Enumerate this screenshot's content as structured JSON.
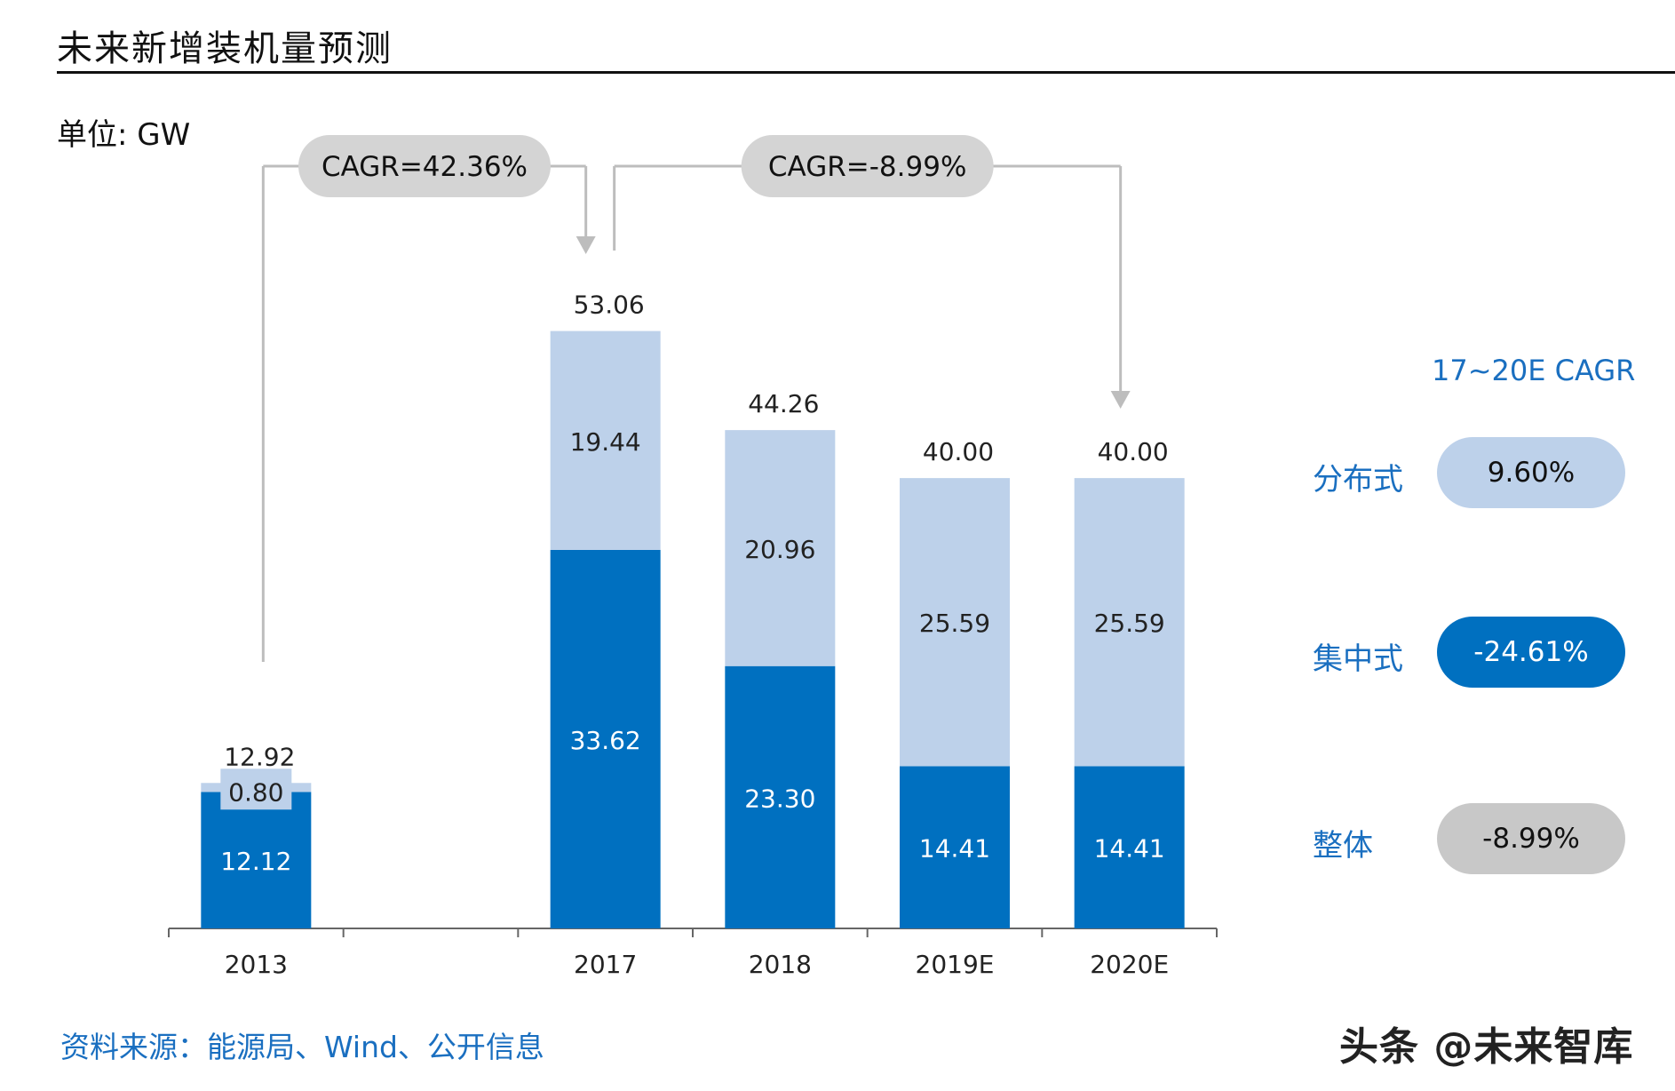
{
  "header": {
    "title": "未来新增装机量预测",
    "unit": "单位: GW"
  },
  "chart_data": {
    "type": "bar",
    "stacked": true,
    "categories": [
      "2013",
      "2017",
      "2018",
      "2019E",
      "2020E"
    ],
    "slots": [
      "2013",
      "",
      "2017",
      "2018",
      "2019E",
      "2020E"
    ],
    "series": [
      {
        "values": [
          12.12,
          33.62,
          23.3,
          14.41,
          14.41
        ],
        "labels": [
          "12.12",
          "33.62",
          "23.30",
          "14.41",
          "14.41"
        ],
        "color": "#0070c0"
      },
      {
        "values": [
          0.8,
          19.44,
          20.96,
          25.59,
          25.59
        ],
        "labels": [
          "0.80",
          "19.44",
          "20.96",
          "25.59",
          "25.59"
        ],
        "color": "#bdd1ea"
      }
    ],
    "totals": [
      "12.92",
      "53.06",
      "44.26",
      "40.00",
      "40.00"
    ],
    "ylim": [
      0,
      58
    ],
    "annotations": [
      {
        "text": "CAGR=42.36%",
        "from": "2013",
        "to": "2017"
      },
      {
        "text": "CAGR=-8.99%",
        "from": "2017",
        "to": "2020E"
      }
    ]
  },
  "cagr_panel": {
    "heading": "17~20E CAGR",
    "rows": [
      {
        "label": "分布式",
        "value": "9.60%",
        "bg": "#bdd1ea",
        "fg": "#111111"
      },
      {
        "label": "集中式",
        "value": "-24.61%",
        "bg": "#0070c0",
        "fg": "#ffffff"
      },
      {
        "label": "整体",
        "value": "-8.99%",
        "bg": "#c8c8c8",
        "fg": "#111111"
      }
    ]
  },
  "footer": {
    "source": "资料来源：能源局、Wind、公开信息",
    "watermark": "头条 @未来智库"
  }
}
